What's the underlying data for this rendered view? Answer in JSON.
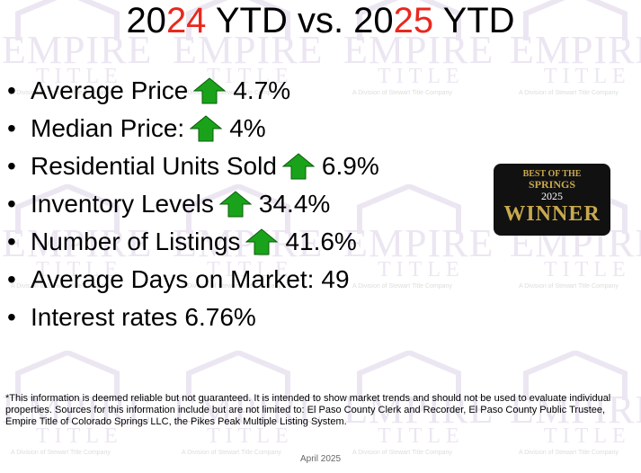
{
  "title": {
    "segments": [
      {
        "text": "20",
        "highlight": false
      },
      {
        "text": "24",
        "highlight": true
      },
      {
        "text": " YTD vs. 20",
        "highlight": false
      },
      {
        "text": "25",
        "highlight": true
      },
      {
        "text": " YTD",
        "highlight": false
      }
    ]
  },
  "bullets": [
    {
      "label": "Average Price",
      "trend": "up",
      "value": "4.7%"
    },
    {
      "label": "Median Price:",
      "trend": "up",
      "value": "4%"
    },
    {
      "label": "Residential Units Sold",
      "trend": "up",
      "value": "6.9%"
    },
    {
      "label": "Inventory Levels",
      "trend": "up",
      "value": "34.4%"
    },
    {
      "label": "Number of Listings",
      "trend": "up",
      "value": "41.6%"
    },
    {
      "label": "Average Days on Market:",
      "value": "49"
    },
    {
      "label": "Interest rates",
      "value": "6.76%"
    }
  ],
  "badge": {
    "line1": "BEST OF THE",
    "line2": "SPRINGS",
    "year": "2025",
    "word": "WINNER"
  },
  "watermark": {
    "brand": "EMPIRE",
    "sub": "TITLE",
    "division": "A Division of Stewart Title Company"
  },
  "footer": {
    "note": "*This information is deemed reliable but not guaranteed.  It is intended to show market trends and should not be used to evaluate individual properties.  Sources for this information include but are not limited to: El Paso County Clerk and Recorder, El Paso County Public Trustee, Empire Title of Colorado Springs LLC, the Pikes Peak Multiple Listing System.",
    "date": "April 2025"
  }
}
